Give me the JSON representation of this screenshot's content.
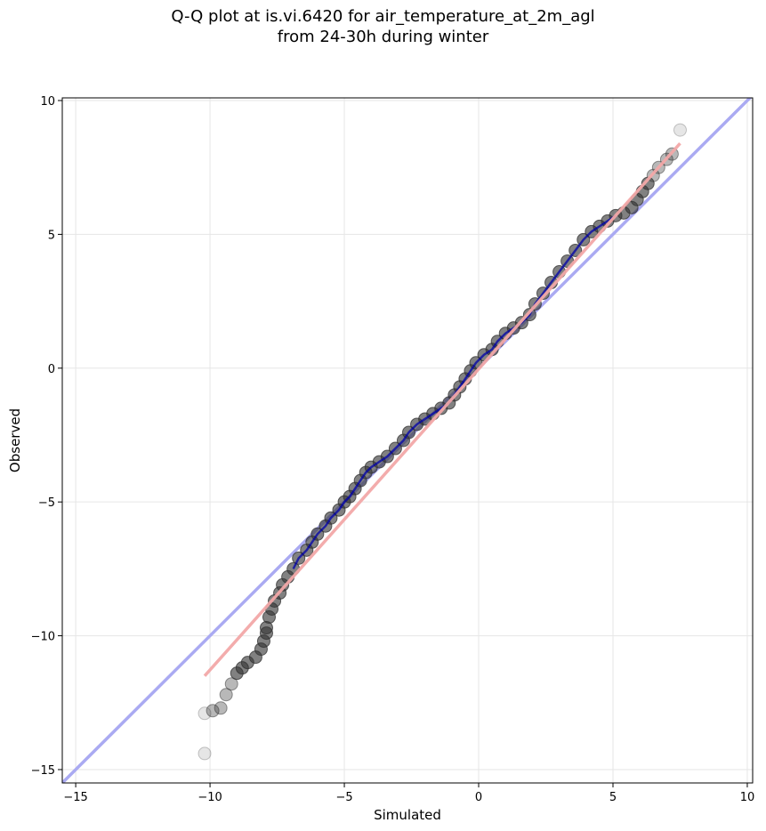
{
  "chart_data": {
    "type": "scatter",
    "title_line1": "Q-Q plot at is.vi.6420 for air_temperature_at_2m_agl",
    "title_line2": "from 24-30h during winter",
    "xlabel": "Simulated",
    "ylabel": "Observed",
    "xlim": [
      -15.5,
      10.2
    ],
    "ylim": [
      -15.5,
      10.1
    ],
    "xticks": [
      -15,
      -10,
      -5,
      0,
      5,
      10
    ],
    "xtick_labels": [
      "−15",
      "−10",
      "−5",
      "0",
      "5",
      "10"
    ],
    "yticks": [
      -15,
      -10,
      -5,
      0,
      5,
      10
    ],
    "ytick_labels": [
      "−15",
      "−10",
      "−5",
      "0",
      "5",
      "10"
    ],
    "grid": true,
    "reference_line": {
      "from": [
        -15.5,
        -15.5
      ],
      "to": [
        10.2,
        10.2
      ],
      "color": "#aaaaf2"
    },
    "fit_line": {
      "from": [
        -10.2,
        -11.5
      ],
      "to": [
        7.5,
        8.4
      ],
      "color": "#f2a8a8"
    },
    "colors": {
      "points": "#333333",
      "center_trace": "#0000aa",
      "red_trace": "#aa0000"
    },
    "series": [
      {
        "points": [
          [
            -10.2,
            -14.4
          ],
          [
            -10.2,
            -12.9
          ],
          [
            -9.9,
            -12.8
          ],
          [
            -9.6,
            -12.7
          ],
          [
            -9.4,
            -12.2
          ],
          [
            -9.2,
            -11.8
          ],
          [
            -9.0,
            -11.4
          ],
          [
            -8.8,
            -11.2
          ],
          [
            -8.6,
            -11.0
          ],
          [
            -8.3,
            -10.8
          ],
          [
            -8.1,
            -10.5
          ],
          [
            -8.0,
            -10.2
          ],
          [
            -7.9,
            -9.9
          ],
          [
            -7.9,
            -9.7
          ],
          [
            -7.8,
            -9.3
          ],
          [
            -7.7,
            -9.0
          ],
          [
            -7.6,
            -8.7
          ],
          [
            -7.4,
            -8.4
          ],
          [
            -7.3,
            -8.1
          ],
          [
            -7.1,
            -7.8
          ],
          [
            -6.9,
            -7.5
          ],
          [
            -6.7,
            -7.1
          ],
          [
            -6.4,
            -6.8
          ],
          [
            -6.2,
            -6.5
          ],
          [
            -6.0,
            -6.2
          ],
          [
            -5.7,
            -5.9
          ],
          [
            -5.5,
            -5.6
          ],
          [
            -5.2,
            -5.3
          ],
          [
            -5.0,
            -5.0
          ],
          [
            -4.8,
            -4.8
          ],
          [
            -4.6,
            -4.5
          ],
          [
            -4.4,
            -4.2
          ],
          [
            -4.2,
            -3.9
          ],
          [
            -4.0,
            -3.7
          ],
          [
            -3.7,
            -3.5
          ],
          [
            -3.4,
            -3.3
          ],
          [
            -3.1,
            -3.0
          ],
          [
            -2.8,
            -2.7
          ],
          [
            -2.6,
            -2.4
          ],
          [
            -2.3,
            -2.1
          ],
          [
            -2.0,
            -1.9
          ],
          [
            -1.7,
            -1.7
          ],
          [
            -1.4,
            -1.5
          ],
          [
            -1.1,
            -1.3
          ],
          [
            -0.9,
            -1.0
          ],
          [
            -0.7,
            -0.7
          ],
          [
            -0.5,
            -0.4
          ],
          [
            -0.3,
            -0.1
          ],
          [
            -0.1,
            0.2
          ],
          [
            0.2,
            0.5
          ],
          [
            0.5,
            0.7
          ],
          [
            0.7,
            1.0
          ],
          [
            1.0,
            1.3
          ],
          [
            1.3,
            1.5
          ],
          [
            1.6,
            1.7
          ],
          [
            1.9,
            2.0
          ],
          [
            2.1,
            2.4
          ],
          [
            2.4,
            2.8
          ],
          [
            2.7,
            3.2
          ],
          [
            3.0,
            3.6
          ],
          [
            3.3,
            4.0
          ],
          [
            3.6,
            4.4
          ],
          [
            3.9,
            4.8
          ],
          [
            4.2,
            5.1
          ],
          [
            4.5,
            5.3
          ],
          [
            4.8,
            5.5
          ],
          [
            5.1,
            5.7
          ],
          [
            5.4,
            5.8
          ],
          [
            5.7,
            6.0
          ],
          [
            5.9,
            6.3
          ],
          [
            6.1,
            6.6
          ],
          [
            6.3,
            6.9
          ],
          [
            6.5,
            7.2
          ],
          [
            6.7,
            7.5
          ],
          [
            7.0,
            7.8
          ],
          [
            7.2,
            8.0
          ],
          [
            7.5,
            8.9
          ]
        ]
      }
    ]
  }
}
